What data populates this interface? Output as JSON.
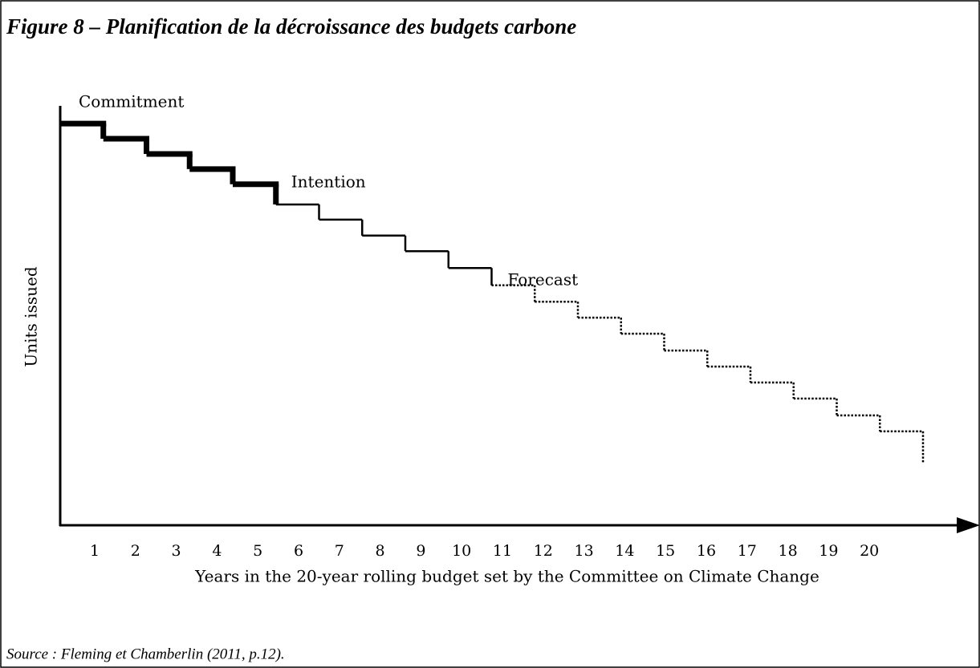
{
  "chart_data": {
    "type": "step",
    "title": "Figure 8 – Planification de la décroissance des budgets carbone",
    "ylabel": "Units issued",
    "xlabel": "Years in the 20-year rolling budget set by the Committee on Climate Change",
    "source": "Source : Fleming et Chamberlin (2011, p.12).",
    "categories": [
      "1",
      "2",
      "3",
      "4",
      "5",
      "6",
      "7",
      "8",
      "9",
      "10",
      "11",
      "12",
      "13",
      "14",
      "15",
      "16",
      "17",
      "18",
      "19",
      "20"
    ],
    "ylim": [
      0,
      100
    ],
    "series": [
      {
        "name": "Commitment",
        "color": "#000000",
        "line_style": "thick",
        "values": [
          95.4,
          91.8,
          88.2,
          84.6,
          81.0,
          null,
          null,
          null,
          null,
          null,
          null,
          null,
          null,
          null,
          null,
          null,
          null,
          null,
          null,
          null
        ]
      },
      {
        "name": "Intention",
        "color": "#000000",
        "line_style": "solid",
        "values": [
          null,
          null,
          null,
          null,
          null,
          76.2,
          72.6,
          68.8,
          65.1,
          61.1,
          null,
          null,
          null,
          null,
          null,
          null,
          null,
          null,
          null,
          null
        ]
      },
      {
        "name": "Forecast",
        "color": "#000000",
        "line_style": "dotted",
        "values": [
          null,
          null,
          null,
          null,
          null,
          null,
          null,
          null,
          null,
          null,
          57.0,
          53.1,
          49.3,
          45.5,
          41.5,
          37.7,
          33.9,
          30.1,
          26.1,
          22.3
        ]
      }
    ]
  }
}
